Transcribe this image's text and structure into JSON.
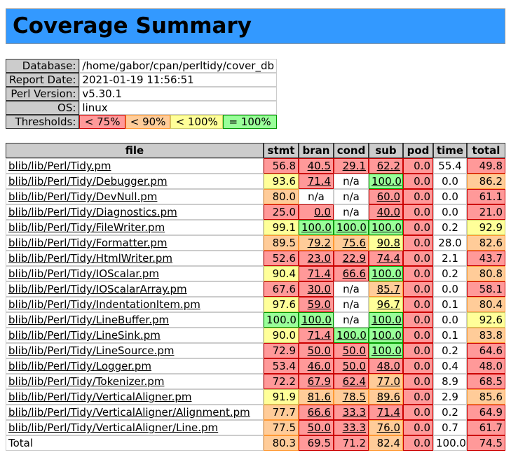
{
  "page": {
    "title": "Coverage Summary"
  },
  "colors": {
    "title_bg": "#3399ff",
    "title_border": "#999999",
    "header_cell_bg": "#cccccc",
    "header_cell_border": "#333333",
    "cell_border": "#cccccc",
    "c0": {
      "bg": "#ff9999",
      "border": "#cc0000"
    },
    "c1": {
      "bg": "#ffcc99",
      "border": "#ff9933"
    },
    "c2": {
      "bg": "#ffff99",
      "border": "#cccc66"
    },
    "c3": {
      "bg": "#99ff99",
      "border": "#009900"
    }
  },
  "info": {
    "rows": [
      {
        "label": "Database:",
        "value": "/home/gabor/cpan/perltidy/cover_db"
      },
      {
        "label": "Report Date:",
        "value": "2021-01-19 11:56:51"
      },
      {
        "label": "Perl Version:",
        "value": "v5.30.1"
      },
      {
        "label": "OS:",
        "value": "linux"
      }
    ],
    "thresholds": {
      "label": "Thresholds:",
      "items": [
        {
          "label": "< 75%",
          "class": "c0"
        },
        {
          "label": "< 90%",
          "class": "c1"
        },
        {
          "label": "< 100%",
          "class": "c2"
        },
        {
          "label": "= 100%",
          "class": "c3"
        }
      ]
    }
  },
  "table": {
    "headers": [
      "file",
      "stmt",
      "bran",
      "cond",
      "sub",
      "pod",
      "time",
      "total"
    ],
    "columns": [
      "stmt",
      "bran",
      "cond",
      "sub",
      "pod",
      "time",
      "total"
    ],
    "link_columns": [
      "bran",
      "cond",
      "sub"
    ],
    "color_rules": {
      "c0_below": 75,
      "c1_below": 90,
      "c2_below": 100,
      "c3_equals": 100,
      "uncolored_columns": [
        "time"
      ]
    },
    "rows": [
      {
        "file": "blib/lib/Perl/Tidy.pm",
        "stmt": "56.8",
        "bran": "40.5",
        "cond": "29.1",
        "sub": "62.2",
        "pod": "0.0",
        "time": "55.4",
        "total": "49.8"
      },
      {
        "file": "blib/lib/Perl/Tidy/Debugger.pm",
        "stmt": "93.6",
        "bran": "71.4",
        "cond": "n/a",
        "sub": "100.0",
        "pod": "0.0",
        "time": "0.0",
        "total": "86.2"
      },
      {
        "file": "blib/lib/Perl/Tidy/DevNull.pm",
        "stmt": "80.0",
        "bran": "n/a",
        "cond": "n/a",
        "sub": "60.0",
        "pod": "0.0",
        "time": "0.0",
        "total": "61.1"
      },
      {
        "file": "blib/lib/Perl/Tidy/Diagnostics.pm",
        "stmt": "25.0",
        "bran": "0.0",
        "cond": "n/a",
        "sub": "40.0",
        "pod": "0.0",
        "time": "0.0",
        "total": "21.0"
      },
      {
        "file": "blib/lib/Perl/Tidy/FileWriter.pm",
        "stmt": "99.1",
        "bran": "100.0",
        "cond": "100.0",
        "sub": "100.0",
        "pod": "0.0",
        "time": "0.2",
        "total": "92.9"
      },
      {
        "file": "blib/lib/Perl/Tidy/Formatter.pm",
        "stmt": "89.5",
        "bran": "79.2",
        "cond": "75.6",
        "sub": "90.8",
        "pod": "0.0",
        "time": "28.0",
        "total": "82.6"
      },
      {
        "file": "blib/lib/Perl/Tidy/HtmlWriter.pm",
        "stmt": "52.6",
        "bran": "23.0",
        "cond": "22.9",
        "sub": "74.4",
        "pod": "0.0",
        "time": "2.1",
        "total": "43.7"
      },
      {
        "file": "blib/lib/Perl/Tidy/IOScalar.pm",
        "stmt": "90.4",
        "bran": "71.4",
        "cond": "66.6",
        "sub": "100.0",
        "pod": "0.0",
        "time": "0.2",
        "total": "80.8"
      },
      {
        "file": "blib/lib/Perl/Tidy/IOScalarArray.pm",
        "stmt": "67.6",
        "bran": "30.0",
        "cond": "n/a",
        "sub": "85.7",
        "pod": "0.0",
        "time": "0.0",
        "total": "58.1"
      },
      {
        "file": "blib/lib/Perl/Tidy/IndentationItem.pm",
        "stmt": "97.6",
        "bran": "59.0",
        "cond": "n/a",
        "sub": "96.7",
        "pod": "0.0",
        "time": "0.1",
        "total": "80.4"
      },
      {
        "file": "blib/lib/Perl/Tidy/LineBuffer.pm",
        "stmt": "100.0",
        "bran": "100.0",
        "cond": "n/a",
        "sub": "100.0",
        "pod": "0.0",
        "time": "0.0",
        "total": "92.6"
      },
      {
        "file": "blib/lib/Perl/Tidy/LineSink.pm",
        "stmt": "90.0",
        "bran": "71.4",
        "cond": "100.0",
        "sub": "100.0",
        "pod": "0.0",
        "time": "0.1",
        "total": "83.8"
      },
      {
        "file": "blib/lib/Perl/Tidy/LineSource.pm",
        "stmt": "72.9",
        "bran": "50.0",
        "cond": "50.0",
        "sub": "100.0",
        "pod": "0.0",
        "time": "0.2",
        "total": "64.6"
      },
      {
        "file": "blib/lib/Perl/Tidy/Logger.pm",
        "stmt": "53.4",
        "bran": "46.0",
        "cond": "50.0",
        "sub": "48.0",
        "pod": "0.0",
        "time": "0.4",
        "total": "48.0"
      },
      {
        "file": "blib/lib/Perl/Tidy/Tokenizer.pm",
        "stmt": "72.2",
        "bran": "67.9",
        "cond": "62.4",
        "sub": "77.0",
        "pod": "0.0",
        "time": "8.9",
        "total": "68.5"
      },
      {
        "file": "blib/lib/Perl/Tidy/VerticalAligner.pm",
        "stmt": "91.9",
        "bran": "81.6",
        "cond": "78.5",
        "sub": "89.6",
        "pod": "0.0",
        "time": "2.9",
        "total": "85.6"
      },
      {
        "file": "blib/lib/Perl/Tidy/VerticalAligner/Alignment.pm",
        "stmt": "77.7",
        "bran": "66.6",
        "cond": "33.3",
        "sub": "71.4",
        "pod": "0.0",
        "time": "0.2",
        "total": "64.9"
      },
      {
        "file": "blib/lib/Perl/Tidy/VerticalAligner/Line.pm",
        "stmt": "77.5",
        "bran": "50.0",
        "cond": "33.3",
        "sub": "76.0",
        "pod": "0.0",
        "time": "0.7",
        "total": "61.7"
      }
    ],
    "total": {
      "file": "Total",
      "stmt": "80.3",
      "bran": "69.5",
      "cond": "71.2",
      "sub": "82.4",
      "pod": "0.0",
      "time": "100.0",
      "total": "74.5"
    }
  }
}
